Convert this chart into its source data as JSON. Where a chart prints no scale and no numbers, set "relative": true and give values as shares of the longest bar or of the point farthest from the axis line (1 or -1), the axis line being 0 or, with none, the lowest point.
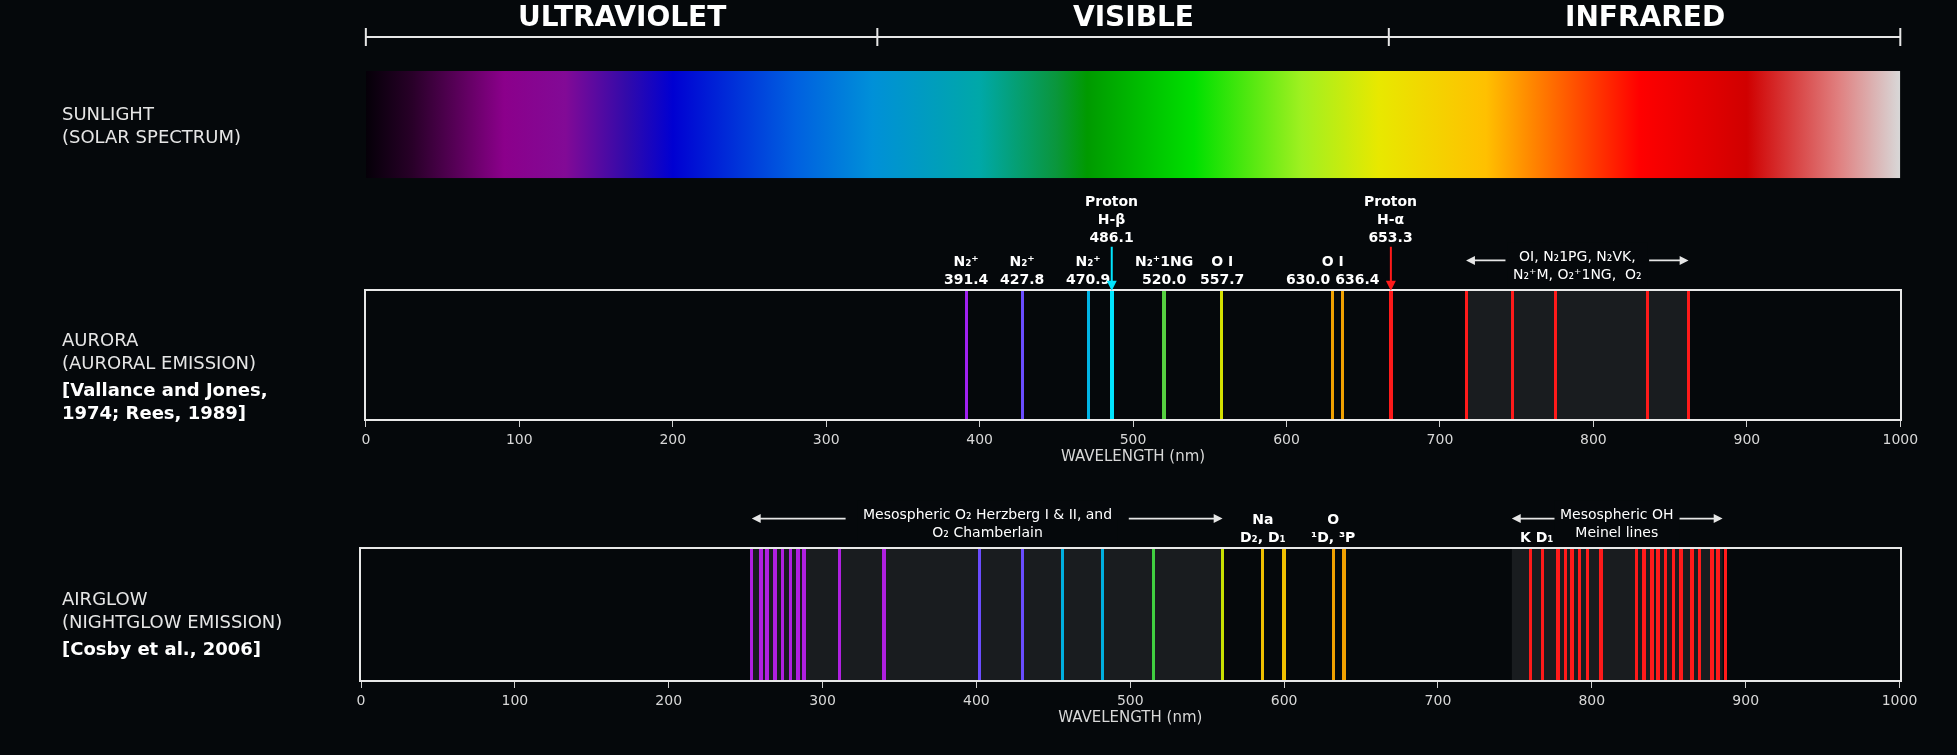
{
  "chart_data": [
    {
      "type": "other",
      "title": "SUNLIGHT\n(SOLAR SPECTRUM)",
      "annotations": [
        "ULTRAVIOLET",
        "VISIBLE",
        "INFRARED"
      ]
    },
    {
      "type": "bar",
      "title": "AURORA\n(AURORAL EMISSION)",
      "subtitle": "[Vallance and Jones,\n1974; Rees, 1989]",
      "xlabel": "WAVELENGTH (nm)",
      "relative": true,
      "x": [
        391.4,
        427.8,
        470.9,
        486.1,
        520.0,
        557.7,
        630.0,
        636.4,
        668,
        717,
        747,
        775,
        835,
        862
      ],
      "values": [
        1,
        1,
        1,
        1,
        1,
        1,
        1,
        1,
        1,
        1,
        1,
        1,
        1,
        1
      ],
      "colors": [
        "#a020f0",
        "#6a4cff",
        "#00b4e6",
        "#00e5ff",
        "#55d040",
        "#d4e000",
        "#f0a000",
        "#f0a000",
        "#ff1a1a",
        "#ff1a1a",
        "#ff1a1a",
        "#ff1a1a",
        "#ff1a1a",
        "#ff1a1a"
      ],
      "xlim": [
        0,
        1000
      ],
      "xticks": [
        0,
        100,
        200,
        300,
        400,
        500,
        600,
        700,
        800,
        900,
        1000
      ],
      "annotations": [
        {
          "text": "N₂⁺\n391.4",
          "x": 391.4,
          "y": 1
        },
        {
          "text": "N₂⁺\n427.8",
          "x": 427.8,
          "y": 1
        },
        {
          "text": "N₂⁺\n470.9",
          "x": 470.9,
          "y": 1
        },
        {
          "text": "Proton\nH-β\n486.1",
          "x": 486.1,
          "y": 1
        },
        {
          "text": "N₂⁺1NG\n520.0",
          "x": 520.0,
          "y": 1
        },
        {
          "text": "O I\n557.7",
          "x": 557.7,
          "y": 1
        },
        {
          "text": "O I\n630.0 636.4",
          "x": 630.0,
          "y": 1
        },
        {
          "text": "Proton\nH-α\n653.3",
          "x": 668,
          "y": 1
        }
      ],
      "bands": [
        {
          "axis": "x",
          "from": 717,
          "to": 862,
          "label": "OI, N₂1PG, N₂VK,\nN₂⁺M, O₂⁺1NG,  O₂"
        }
      ]
    },
    {
      "type": "bar",
      "title": "AIRGLOW\n(NIGHTGLOW EMISSION)",
      "subtitle": "[Cosby et al., 2006]",
      "xlabel": "WAVELENGTH (nm)",
      "relative": true,
      "x": [
        254,
        260,
        264,
        269,
        274,
        279,
        284,
        288,
        311,
        340,
        402,
        430,
        456,
        482,
        515,
        560,
        586,
        600,
        632,
        639,
        760,
        768,
        778,
        783,
        787,
        792,
        797,
        806,
        829,
        834,
        839,
        843,
        848,
        853,
        858,
        865,
        870,
        878,
        882,
        887
      ],
      "values": [
        1,
        1,
        1,
        1,
        1,
        1,
        1,
        1,
        1,
        1,
        1,
        1,
        1,
        1,
        1,
        1,
        1,
        1,
        1,
        1,
        1,
        1,
        1,
        1,
        1,
        1,
        1,
        1,
        1,
        1,
        1,
        1,
        1,
        1,
        1,
        1,
        1,
        1,
        1,
        1
      ],
      "colors": [
        "#b020e0",
        "#b020e0",
        "#b020e0",
        "#b020e0",
        "#b020e0",
        "#b020e0",
        "#b020e0",
        "#b020e0",
        "#b020e0",
        "#b020e0",
        "#6a4cff",
        "#6a4cff",
        "#00b0e0",
        "#00b0e0",
        "#40d040",
        "#c8e000",
        "#f0c000",
        "#f0c000",
        "#f0a000",
        "#f0a000",
        "#ff1a1a",
        "#ff1a1a",
        "#ff1a1a",
        "#ff1a1a",
        "#ff1a1a",
        "#ff1a1a",
        "#ff1a1a",
        "#ff1a1a",
        "#ff1a1a",
        "#ff1a1a",
        "#ff1a1a",
        "#ff1a1a",
        "#ff1a1a",
        "#ff1a1a",
        "#ff1a1a",
        "#ff1a1a",
        "#ff1a1a",
        "#ff1a1a",
        "#ff1a1a",
        "#ff1a1a"
      ],
      "xlim": [
        0,
        1000
      ],
      "xticks": [
        0,
        100,
        200,
        300,
        400,
        500,
        600,
        700,
        800,
        900,
        1000
      ],
      "annotations": [
        {
          "text": "Na\nD₂, D₁",
          "x": 586,
          "y": 1
        },
        {
          "text": "O\n¹D, ³P",
          "x": 632,
          "y": 1
        },
        {
          "text": "K D₁",
          "x": 764,
          "y": 1
        }
      ],
      "bands": [
        {
          "axis": "x",
          "from": 254,
          "to": 560,
          "label": "Mesospheric O₂ Herzberg I & II, and\nO₂ Chamberlain"
        },
        {
          "axis": "x",
          "from": 748,
          "to": 885,
          "label": "Mesospheric OH\nMeinel lines"
        }
      ]
    }
  ]
}
